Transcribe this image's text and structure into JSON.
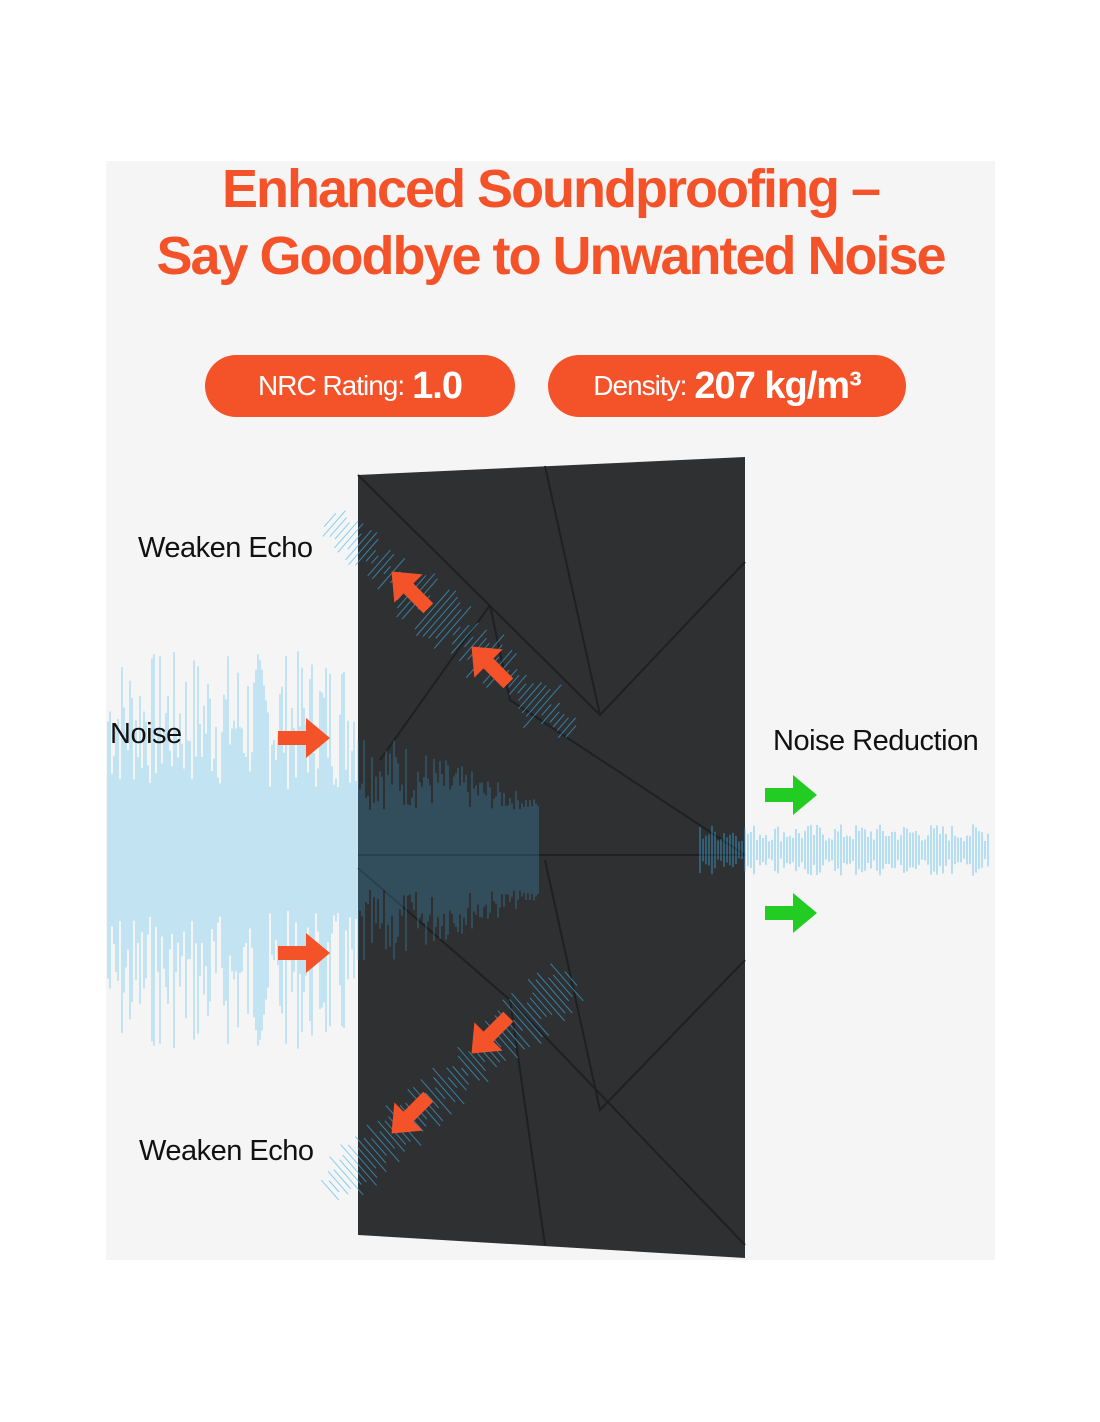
{
  "title": {
    "line1": "Enhanced Soundproofing –",
    "line2": "Say Goodbye to Unwanted Noise"
  },
  "badges": [
    {
      "label": "NRC Rating:",
      "value": "1.0"
    },
    {
      "label": "Density:",
      "value": "207 kg/m³"
    }
  ],
  "labels": {
    "weaken_echo_top": "Weaken Echo",
    "noise": "Noise",
    "noise_reduction": "Noise Reduction",
    "weaken_echo_bottom": "Weaken Echo"
  },
  "colors": {
    "accent": "#f4532a",
    "panel": "#2f3032",
    "wave": "#3fb4ec",
    "reduction_arrow": "#22cc22",
    "background": "#f5f5f5"
  }
}
